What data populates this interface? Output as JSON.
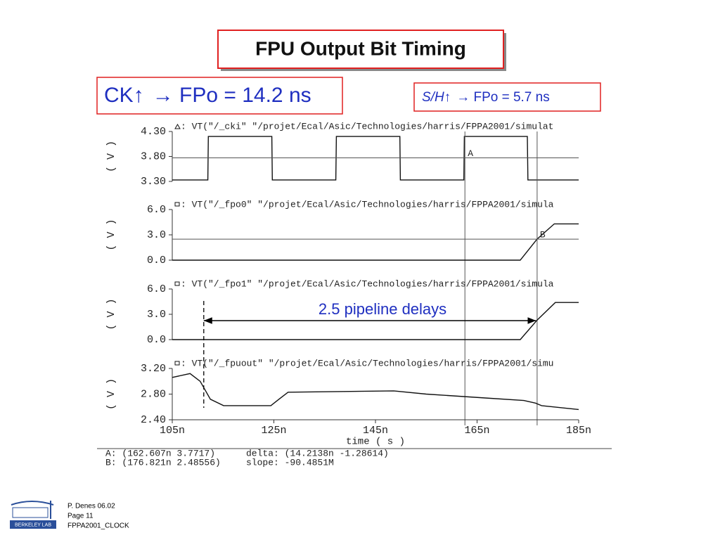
{
  "slide": {
    "title": "FPU Output Bit Timing",
    "ck_label": "CK↑",
    "ck_text": "→ FPo = 14.2 ns",
    "sh_label": "S/H↑",
    "sh_text": "→ FPo = 5.7 ns"
  },
  "readouts": {
    "a": "A: (162.607n 3.7717)",
    "b": "B: (176.821n 2.48556)",
    "delta": "delta: (14.2138n -1.28614)",
    "slope": "slope: -90.4851M"
  },
  "footer": {
    "logo_text": "BERKELEY LAB",
    "author": "P. Denes 06.02",
    "page": "Page 11",
    "file": "FPPA2001_CLOCK"
  },
  "chart_data": [
    {
      "type": "line",
      "y_label": "( V )",
      "xlim": [
        105,
        185
      ],
      "ylim": [
        3.3,
        4.3
      ],
      "yticks": [
        {
          "value": 4.3,
          "label": "4.30"
        },
        {
          "value": 3.8,
          "label": "3.80"
        },
        {
          "value": 3.3,
          "label": "3.30"
        }
      ],
      "x": [
        105,
        112,
        112.1,
        124.6,
        124.7,
        137.2,
        137.3,
        149.8,
        149.9,
        162.4,
        162.5,
        174.9,
        175,
        185
      ],
      "series": [
        {
          "name": ": VT(\"/_cki\" \"/projet/Ecal/Asic/Technologies/harris/FPPA2001/simulat",
          "color": "#111111",
          "symbol": "triangle",
          "values": [
            3.33,
            3.33,
            4.2,
            4.2,
            3.33,
            3.33,
            4.2,
            4.2,
            3.33,
            3.33,
            4.2,
            4.2,
            3.33,
            3.33
          ]
        }
      ],
      "markers": [
        {
          "label": "A",
          "x": 162.607,
          "y": 3.7717
        }
      ]
    },
    {
      "type": "line",
      "y_label": "( V )",
      "xlim": [
        105,
        185
      ],
      "ylim": [
        0,
        6
      ],
      "yticks": [
        {
          "value": 6,
          "label": "6.0"
        },
        {
          "value": 3,
          "label": "3.0"
        },
        {
          "value": 0,
          "label": "0.0"
        }
      ],
      "x": [
        105,
        173.5,
        176.8,
        180.2,
        185
      ],
      "series": [
        {
          "name": ": VT(\"/_fpo0\" \"/projet/Ecal/Asic/Technologies/harris/FPPA2001/simula",
          "color": "#111111",
          "symbol": "square",
          "values": [
            0,
            0,
            2.49,
            4.3,
            4.3
          ]
        }
      ],
      "markers": [
        {
          "label": "B",
          "x": 176.821,
          "y": 2.48556
        }
      ]
    },
    {
      "type": "line",
      "y_label": "( V )",
      "xlim": [
        105,
        185
      ],
      "ylim": [
        0,
        6
      ],
      "yticks": [
        {
          "value": 6,
          "label": "6.0"
        },
        {
          "value": 3,
          "label": "3.0"
        },
        {
          "value": 0,
          "label": "0.0"
        }
      ],
      "x": [
        105,
        173.5,
        176.8,
        180.4,
        185
      ],
      "series": [
        {
          "name": ": VT(\"/_fpo1\" \"/projet/Ecal/Asic/Technologies/harris/FPPA2001/simula",
          "color": "#111111",
          "symbol": "square",
          "values": [
            0,
            0,
            2.3,
            4.4,
            4.4
          ]
        }
      ],
      "annotation": {
        "text": "2.5 pipeline delays",
        "x": [
          111.2,
          176.6
        ],
        "y": 2.25
      }
    },
    {
      "type": "line",
      "y_label": "( V )",
      "x_label": "time ( s )",
      "xlim": [
        105,
        185
      ],
      "ylim": [
        2.4,
        3.2
      ],
      "yticks": [
        {
          "value": 3.2,
          "label": "3.20"
        },
        {
          "value": 2.8,
          "label": "2.80"
        },
        {
          "value": 2.4,
          "label": "2.40"
        }
      ],
      "xticks": [
        {
          "value": 105,
          "label": "105n"
        },
        {
          "value": 125,
          "label": "125n"
        },
        {
          "value": 145,
          "label": "145n"
        },
        {
          "value": 165,
          "label": "165n"
        },
        {
          "value": 185,
          "label": "185n"
        }
      ],
      "x": [
        105,
        108.5,
        110.5,
        112.5,
        115.1,
        124.4,
        126,
        127.8,
        148.6,
        155,
        166.6,
        174.2,
        176.5,
        177.7,
        185
      ],
      "series": [
        {
          "name": ": VT(\"/_fpuout\" \"/projet/Ecal/Asic/Technologies/harris/FPPA2001/simu",
          "color": "#111111",
          "symbol": "square",
          "values": [
            3.06,
            3.12,
            3.0,
            2.72,
            2.62,
            2.62,
            2.72,
            2.83,
            2.85,
            2.8,
            2.74,
            2.7,
            2.66,
            2.62,
            2.56
          ]
        }
      ]
    }
  ]
}
